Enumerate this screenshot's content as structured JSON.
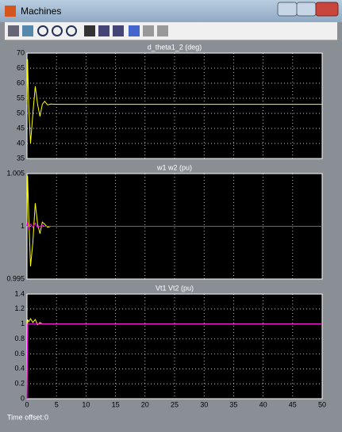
{
  "window": {
    "title": "Machines"
  },
  "chart_data": [
    {
      "type": "line",
      "title": "d_theta1_2 (deg)",
      "x": [
        0,
        0.1,
        0.3,
        0.6,
        1,
        1.4,
        1.8,
        2.2,
        2.6,
        3,
        3.5,
        4,
        5,
        50
      ],
      "series": [
        {
          "color": "#ffff00",
          "values": [
            53,
            68,
            52,
            40,
            50,
            59,
            53,
            49,
            53,
            54,
            52.8,
            53.1,
            53,
            53
          ]
        }
      ],
      "xlim": [
        0,
        50
      ],
      "ylim": [
        35,
        70
      ],
      "yticks": [
        35,
        40,
        45,
        50,
        55,
        60,
        65,
        70
      ],
      "grid": true
    },
    {
      "type": "line",
      "title": "w1 w2 (pu)",
      "x": [
        0,
        0.1,
        0.3,
        0.6,
        1,
        1.4,
        1.8,
        2.2,
        2.6,
        3,
        3.5,
        4,
        5,
        50
      ],
      "series": [
        {
          "color": "#ffff00",
          "values": [
            1,
            1.0048,
            1.001,
            0.9962,
            0.9985,
            1.0022,
            1.0002,
            0.9993,
            1.0004,
            1.0002,
            0.9999,
            1,
            1,
            1
          ]
        },
        {
          "color": "#ff00ff",
          "values": [
            1,
            1.0004,
            0.9997,
            1.0002,
            0.9999,
            1.0003,
            0.9999,
            1,
            1.0001,
            1,
            1,
            1,
            1,
            1
          ]
        }
      ],
      "xlim": [
        0,
        50
      ],
      "ylim": [
        0.995,
        1.005
      ],
      "yticks": [
        0.995,
        1,
        1.005
      ],
      "grid": true
    },
    {
      "type": "line",
      "title": "Vt1 Vt2 (pu)",
      "x": [
        0,
        0.1,
        0.3,
        0.6,
        1,
        1.4,
        1.8,
        2.2,
        2.6,
        3,
        3.5,
        4,
        5,
        50
      ],
      "series": [
        {
          "color": "#ffff00",
          "values": [
            0,
            1.06,
            1.03,
            1.07,
            1.02,
            1.06,
            0.99,
            1.02,
            1,
            1,
            1,
            1,
            1,
            1
          ]
        },
        {
          "color": "#ff00ff",
          "values": [
            0,
            1,
            1,
            1,
            1,
            1,
            1,
            1,
            1,
            1,
            1,
            1,
            1,
            1
          ]
        }
      ],
      "xlim": [
        0,
        50
      ],
      "xticks": [
        0,
        5,
        10,
        15,
        20,
        25,
        30,
        35,
        40,
        45,
        50
      ],
      "ylim": [
        0,
        1.4
      ],
      "yticks": [
        0,
        0.2,
        0.4,
        0.6,
        0.8,
        1,
        1.2,
        1.4
      ],
      "grid": true
    }
  ],
  "footer": {
    "label": "Time offset:",
    "value": 0
  }
}
